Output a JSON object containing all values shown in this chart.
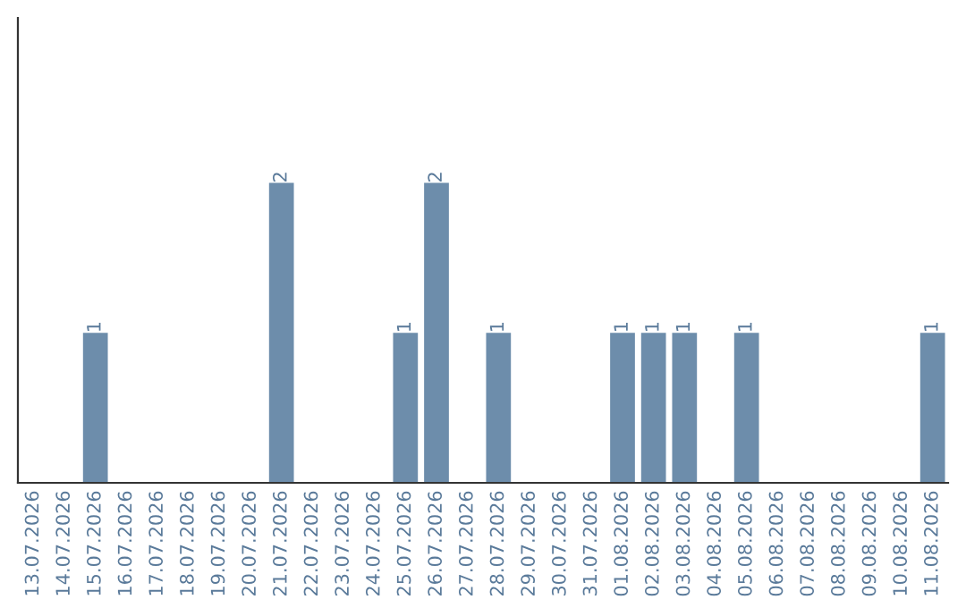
{
  "chart_data": {
    "type": "bar",
    "categories": [
      "13.07.2026",
      "14.07.2026",
      "15.07.2026",
      "16.07.2026",
      "17.07.2026",
      "18.07.2026",
      "19.07.2026",
      "20.07.2026",
      "21.07.2026",
      "22.07.2026",
      "23.07.2026",
      "24.07.2026",
      "25.07.2026",
      "26.07.2026",
      "27.07.2026",
      "28.07.2026",
      "29.07.2026",
      "30.07.2026",
      "31.07.2026",
      "01.08.2026",
      "02.08.2026",
      "03.08.2026",
      "04.08.2026",
      "05.08.2026",
      "06.08.2026",
      "07.08.2026",
      "08.08.2026",
      "09.08.2026",
      "10.08.2026",
      "11.08.2026"
    ],
    "values": [
      0,
      0,
      1,
      0,
      0,
      0,
      0,
      0,
      2,
      0,
      0,
      0,
      1,
      2,
      0,
      1,
      0,
      0,
      0,
      1,
      1,
      1,
      0,
      1,
      0,
      0,
      0,
      0,
      0,
      1
    ],
    "color": "#6d8dab",
    "ylim": [
      0,
      3.1
    ],
    "value_labels": [
      null,
      null,
      "1",
      null,
      null,
      null,
      null,
      null,
      "2",
      null,
      null,
      null,
      "1",
      "2",
      null,
      "1",
      null,
      null,
      null,
      "1",
      "1",
      "1",
      null,
      "1",
      null,
      null,
      null,
      null,
      null,
      "1"
    ],
    "tick_labels": "x",
    "grid": false,
    "legend": false
  }
}
